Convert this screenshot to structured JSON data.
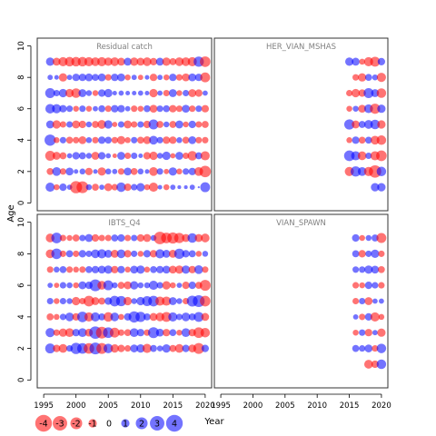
{
  "chart_data": {
    "type": "scatter",
    "subtype": "residual-bubble",
    "xlabel": "Year",
    "ylabel": "Age",
    "xlim": [
      1994,
      2021
    ],
    "ylim": [
      -0.5,
      10.5
    ],
    "x_ticks": [
      1995,
      2000,
      2005,
      2010,
      2015,
      2020
    ],
    "y_ticks": [
      0,
      2,
      4,
      6,
      8,
      10
    ],
    "colors": {
      "positive": "#0000ff",
      "negative": "#ff0000",
      "alpha": 0.55
    },
    "legend": {
      "placement": "bottom-left",
      "values": [
        -4,
        -3,
        -2,
        -1,
        0,
        1,
        2,
        3,
        4
      ],
      "labels": [
        "-4",
        "-3",
        "-2",
        "-1",
        "0",
        "1",
        "2",
        "3",
        "4"
      ]
    },
    "panels": [
      {
        "title": "Residual catch",
        "years": [
          1996,
          2020
        ],
        "ages": [
          1,
          9
        ],
        "residuals": [
          [
            1.2,
            -0.5,
            0.8,
            0.4,
            -2.1,
            -2.0,
            0.5,
            -0.7,
            0.4,
            -0.9,
            -0.6,
            1.3,
            -0.8,
            0.6,
            1.0,
            -0.5,
            -1.2,
            0.3,
            -0.5,
            0.4,
            0.2,
            0.2,
            0.4,
            0.0,
            1.4
          ],
          [
            -0.7,
            1.1,
            -0.6,
            0.9,
            0.3,
            0.5,
            -0.8,
            0.3,
            -1.0,
            0.5,
            0.4,
            -0.6,
            0.9,
            -0.7,
            0.5,
            0.3,
            -1.1,
            0.6,
            -0.4,
            1.0,
            -0.5,
            0.6,
            0.8,
            -1.1,
            -1.9
          ],
          [
            -1.4,
            -0.9,
            -0.7,
            0.4,
            0.8,
            0.7,
            0.5,
            -0.9,
            0.8,
            0.4,
            -0.3,
            0.9,
            -0.6,
            0.6,
            0.3,
            -0.8,
            -1.0,
            0.5,
            1.0,
            -0.4,
            0.9,
            -0.6,
            -1.3,
            0.7,
            -1.2
          ],
          [
            1.8,
            -0.5,
            0.6,
            -0.7,
            -0.6,
            -0.9,
            0.5,
            -0.6,
            0.8,
            0.7,
            -0.6,
            -1.0,
            -0.5,
            0.6,
            -0.7,
            -0.9,
            1.1,
            0.6,
            -0.8,
            -0.8,
            0.5,
            -0.7,
            0.9,
            -0.6,
            -0.6
          ],
          [
            0.9,
            -1.0,
            -0.6,
            0.6,
            -0.9,
            -0.8,
            0.5,
            -0.7,
            -1.1,
            1.0,
            -0.4,
            0.6,
            -0.9,
            -0.6,
            0.6,
            -0.8,
            1.4,
            -0.7,
            0.5,
            -0.7,
            0.9,
            -0.5,
            0.8,
            -0.6,
            -0.7
          ],
          [
            1.3,
            1.2,
            0.8,
            0.6,
            -0.5,
            0.6,
            -0.5,
            0.4,
            0.7,
            -0.6,
            0.8,
            0.8,
            0.4,
            -0.6,
            -0.5,
            0.7,
            -0.9,
            0.6,
            0.7,
            -0.8,
            -0.6,
            0.9,
            -0.6,
            0.6,
            -0.8
          ],
          [
            1.4,
            0.6,
            1.0,
            -1.0,
            -1.3,
            0.9,
            0.5,
            -0.5,
            0.8,
            1.0,
            0.3,
            0.4,
            0.3,
            0.3,
            0.4,
            0.3,
            -1.0,
            0.4,
            -0.6,
            0.9,
            -0.5,
            0.6,
            -0.9,
            -0.8,
            0.4
          ],
          [
            0.4,
            0.3,
            -1.0,
            0.4,
            0.8,
            0.8,
            0.9,
            0.7,
            0.9,
            -0.6,
            0.8,
            0.9,
            -0.5,
            0.4,
            -0.4,
            0.3,
            -0.8,
            0.4,
            -0.5,
            0.8,
            -0.6,
            -0.9,
            0.9,
            0.8,
            -1.4
          ],
          [
            1.0,
            -0.9,
            -1.2,
            -1.3,
            -1.3,
            -1.3,
            -1.2,
            -1.1,
            -1.2,
            -1.0,
            -1.1,
            -0.9,
            0.9,
            -1.0,
            -0.9,
            -1.1,
            -0.8,
            0.9,
            -1.0,
            -0.7,
            -1.1,
            -1.1,
            -1.2,
            1.5,
            -1.6
          ]
        ]
      },
      {
        "title": "HER_VIAN_MSHAS",
        "years": [
          2015,
          2020
        ],
        "ages": [
          1,
          9
        ],
        "residuals": [
          [
            null,
            null,
            null,
            null,
            1.0,
            1.0
          ],
          [
            -1.2,
            1.5,
            1.1,
            -1.2,
            -2.2,
            1.3
          ],
          [
            1.6,
            1.2,
            -1.1,
            0.6,
            -1.2,
            -1.6
          ],
          [
            -0.5,
            0.8,
            -0.7,
            0.7,
            -1.1,
            -1.3
          ],
          [
            1.5,
            -0.9,
            0.7,
            1.1,
            1.3,
            -1.0
          ],
          [
            -0.5,
            0.5,
            -0.9,
            1.1,
            -1.5,
            1.0
          ],
          [
            -0.6,
            -1.0,
            -0.8,
            1.4,
            0.9,
            -1.3
          ],
          [
            null,
            -0.6,
            -1.0,
            0.7,
            0.5,
            -1.2
          ],
          [
            1.0,
            0.9,
            -0.5,
            -1.2,
            -1.4,
            0.8
          ]
        ]
      },
      {
        "title": "IBTS_Q4",
        "years": [
          1996,
          2020
        ],
        "ages": [
          2,
          9
        ],
        "residuals": [
          [
            1.4,
            -0.8,
            -1.1,
            0.6,
            1.8,
            1.6,
            -1.6,
            2.0,
            -1.7,
            1.3,
            -1.0,
            -0.8,
            -0.6,
            0.9,
            1.0,
            -1.2,
            0.7,
            0.5,
            1.0,
            -0.7,
            -1.1,
            0.8,
            -0.9,
            -1.7,
            0.8
          ],
          [
            1.2,
            -0.6,
            -1.0,
            -1.1,
            0.8,
            1.1,
            -0.9,
            2.2,
            -2.0,
            1.6,
            -1.4,
            -0.6,
            -0.7,
            1.1,
            0.8,
            -0.6,
            1.7,
            0.9,
            -0.8,
            0.7,
            -0.5,
            1.1,
            -0.8,
            -1.6,
            -1.3
          ],
          [
            -0.7,
            -0.5,
            0.6,
            1.1,
            -0.8,
            1.6,
            -1.2,
            1.2,
            0.7,
            -1.3,
            1.1,
            -0.5,
            0.8,
            1.8,
            1.5,
            0.7,
            -0.9,
            -1.1,
            -1.4,
            1.2,
            0.6,
            1.1,
            0.7,
            1.4,
            -0.9
          ],
          [
            0.6,
            -0.5,
            0.6,
            0.5,
            -1.0,
            -0.6,
            -1.6,
            -0.9,
            -0.7,
            0.8,
            1.6,
            1.5,
            -1.0,
            0.5,
            1.0,
            1.4,
            1.6,
            -1.2,
            -1.2,
            0.9,
            0.5,
            -0.6,
            1.7,
            2.0,
            -1.6
          ],
          [
            0.4,
            -0.4,
            0.6,
            0.5,
            -0.5,
            0.9,
            0.8,
            2.0,
            -1.1,
            1.4,
            0.5,
            -0.7,
            -0.9,
            1.0,
            0.5,
            0.5,
            1.2,
            0.6,
            -1.0,
            -0.5,
            0.4,
            -0.8,
            0.8,
            -0.7,
            -1.7
          ],
          [
            -0.6,
            0.5,
            0.7,
            -0.6,
            -0.5,
            -0.6,
            0.7,
            0.8,
            0.9,
            1.0,
            -0.8,
            0.8,
            -0.5,
            0.9,
            1.0,
            -0.5,
            0.7,
            0.8,
            0.9,
            -0.9,
            -1.0,
            1.0,
            -0.8,
            1.1,
            -0.6
          ],
          [
            -1.1,
            1.6,
            -0.6,
            0.7,
            -0.6,
            0.8,
            0.6,
            1.1,
            1.2,
            0.9,
            -0.9,
            1.1,
            -0.8,
            0.6,
            -0.5,
            0.8,
            -0.8,
            1.2,
            0.9,
            -0.9,
            1.5,
            0.8,
            0.7,
            -0.5,
            0.5
          ],
          [
            -1.1,
            1.6,
            -0.6,
            -0.5,
            -0.7,
            0.6,
            0.9,
            -0.8,
            -0.6,
            -0.6,
            0.7,
            0.8,
            -0.6,
            0.6,
            -0.8,
            -0.9,
            0.5,
            -2.2,
            -1.6,
            -1.8,
            -1.5,
            -0.9,
            1.3,
            -0.9,
            -1.1
          ]
        ]
      },
      {
        "title": "VIAN_SPAWN",
        "years": [
          2016,
          2020
        ],
        "ages": [
          1,
          9
        ],
        "residuals": [
          [
            null,
            null,
            -1.1,
            -0.8,
            1.3
          ],
          [
            0.7,
            0.6,
            0.9,
            -0.6,
            1.3
          ],
          [
            -0.5,
            0.6,
            -0.8,
            0.4,
            -1.0
          ],
          [
            0.4,
            -0.6,
            0.8,
            -1.2,
            -0.5
          ],
          [
            -0.6,
            0.6,
            -0.9,
            0.4,
            0.4
          ],
          [
            -0.6,
            -0.5,
            0.8,
            0.6,
            -0.6
          ],
          [
            0.6,
            0.6,
            1.0,
            0.9,
            -0.7
          ],
          [
            0.7,
            -0.8,
            0.6,
            1.0,
            -0.6
          ],
          [
            0.8,
            -0.5,
            0.5,
            0.7,
            -1.4
          ]
        ]
      }
    ]
  }
}
